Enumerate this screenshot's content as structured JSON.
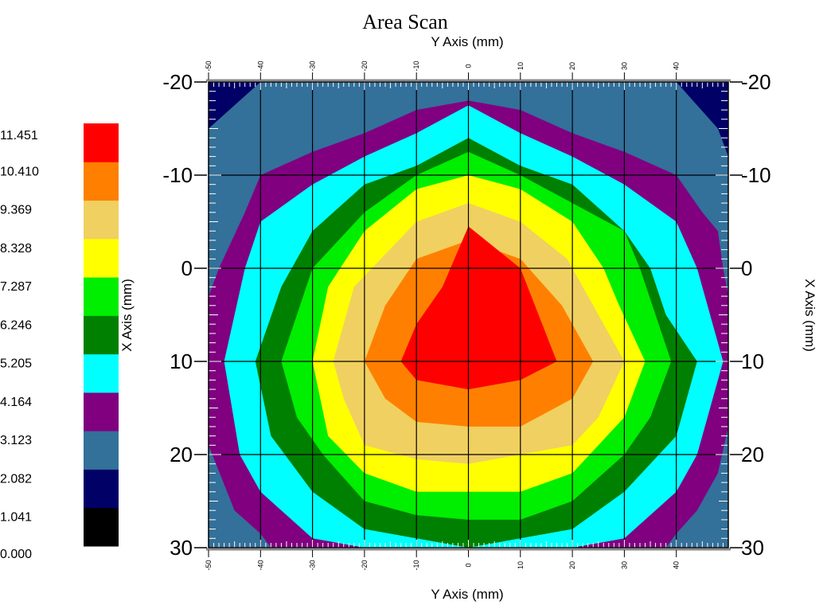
{
  "chart_data": {
    "type": "heatmap",
    "subtype": "filled-contour",
    "title": "Area Scan",
    "y_axis_title": "Y Axis (mm)",
    "x_axis_title": "X Axis (mm)",
    "horizontal_axis": {
      "range": [
        -50,
        50
      ],
      "ticks": [
        -50,
        -40,
        -30,
        -20,
        -10,
        0,
        10,
        20,
        30,
        40
      ]
    },
    "vertical_axis": {
      "range": [
        -20,
        30
      ],
      "ticks": [
        -20,
        -10,
        0,
        10,
        20,
        30
      ]
    },
    "grid": true,
    "colorbar": {
      "position": "left",
      "levels": [
        "0.000",
        "1.041",
        "2.082",
        "3.123",
        "4.164",
        "5.205",
        "6.246",
        "7.287",
        "8.328",
        "9.369",
        "10.410",
        "11.451"
      ],
      "colors": [
        "#000000",
        "#000066",
        "#33709a",
        "#800080",
        "#00ffff",
        "#008000",
        "#00ee00",
        "#ffff00",
        "#f0d060",
        "#ff8000",
        "#ff0000"
      ]
    },
    "peak": {
      "y_mm": 0,
      "x_mm": 10,
      "value_range": "10.410–11.451"
    },
    "contour_bands": [
      {
        "min": 10.41,
        "color": "#ff0000",
        "polygon": [
          [
            -13,
            10
          ],
          [
            -10,
            6
          ],
          [
            -5,
            2
          ],
          [
            0,
            -4.5
          ],
          [
            10,
            0
          ],
          [
            17,
            10
          ],
          [
            10,
            12
          ],
          [
            0,
            13
          ],
          [
            -10,
            12
          ]
        ]
      },
      {
        "min": 9.369,
        "color": "#ff8000",
        "polygon": [
          [
            -20,
            10
          ],
          [
            -16,
            4
          ],
          [
            -10,
            -1
          ],
          [
            0,
            -3
          ],
          [
            10,
            -1
          ],
          [
            18,
            4
          ],
          [
            24,
            10
          ],
          [
            20,
            14
          ],
          [
            10,
            17
          ],
          [
            0,
            17
          ],
          [
            -10,
            16.5
          ],
          [
            -16,
            14
          ]
        ]
      },
      {
        "min": 8.328,
        "color": "#f0d060",
        "polygon": [
          [
            -26,
            10
          ],
          [
            -22,
            2
          ],
          [
            -10,
            -5
          ],
          [
            0,
            -7
          ],
          [
            10,
            -5
          ],
          [
            19,
            -1
          ],
          [
            25,
            5
          ],
          [
            30,
            10
          ],
          [
            25,
            16
          ],
          [
            20,
            19
          ],
          [
            10,
            20
          ],
          [
            0,
            21
          ],
          [
            -10,
            20.5
          ],
          [
            -20,
            19
          ],
          [
            -24,
            14
          ]
        ]
      },
      {
        "min": 7.287,
        "color": "#ffff00",
        "polygon": [
          [
            -30,
            10
          ],
          [
            -27,
            2
          ],
          [
            -20,
            -4
          ],
          [
            -10,
            -8.5
          ],
          [
            0,
            -10
          ],
          [
            10,
            -8.5
          ],
          [
            20,
            -5
          ],
          [
            26,
            0
          ],
          [
            29,
            4
          ],
          [
            34,
            10
          ],
          [
            30,
            16
          ],
          [
            20,
            22
          ],
          [
            10,
            24
          ],
          [
            0,
            24
          ],
          [
            -10,
            24
          ],
          [
            -20,
            22
          ],
          [
            -27,
            18
          ]
        ]
      },
      {
        "min": 6.246,
        "color": "#00ee00",
        "polygon": [
          [
            -36,
            10
          ],
          [
            -30,
            0
          ],
          [
            -20,
            -6
          ],
          [
            -10,
            -10
          ],
          [
            0,
            -12.5
          ],
          [
            10,
            -10
          ],
          [
            20,
            -7
          ],
          [
            30,
            -4
          ],
          [
            33,
            0
          ],
          [
            39,
            10
          ],
          [
            35,
            16
          ],
          [
            30,
            20
          ],
          [
            20,
            25
          ],
          [
            10,
            27
          ],
          [
            0,
            27
          ],
          [
            -10,
            26.5
          ],
          [
            -20,
            25
          ],
          [
            -28,
            20
          ],
          [
            -33,
            16
          ]
        ]
      },
      {
        "min": 5.205,
        "color": "#008000",
        "polygon": [
          [
            -41,
            10
          ],
          [
            -36,
            2
          ],
          [
            -34,
            0
          ],
          [
            -30,
            -4
          ],
          [
            -20,
            -9
          ],
          [
            -10,
            -11
          ],
          [
            0,
            -14
          ],
          [
            10,
            -11
          ],
          [
            20,
            -9
          ],
          [
            30,
            -4
          ],
          [
            35,
            0
          ],
          [
            38,
            5
          ],
          [
            44,
            10
          ],
          [
            40,
            18
          ],
          [
            30,
            24
          ],
          [
            20,
            28
          ],
          [
            10,
            29
          ],
          [
            0,
            30
          ],
          [
            -10,
            29
          ],
          [
            -20,
            28
          ],
          [
            -30,
            24
          ],
          [
            -38,
            18
          ]
        ]
      },
      {
        "min": 4.164,
        "color": "#00ffff",
        "polygon": [
          [
            -47,
            10
          ],
          [
            -43,
            0
          ],
          [
            -40,
            -5
          ],
          [
            -30,
            -9
          ],
          [
            -20,
            -12
          ],
          [
            -10,
            -14.5
          ],
          [
            0,
            -17.5
          ],
          [
            10,
            -14.5
          ],
          [
            20,
            -12
          ],
          [
            30,
            -9
          ],
          [
            40,
            -5
          ],
          [
            44,
            0
          ],
          [
            49,
            10
          ],
          [
            44,
            20
          ],
          [
            40,
            24
          ],
          [
            30,
            29
          ],
          [
            20,
            30
          ],
          [
            -20,
            30
          ],
          [
            -30,
            29
          ],
          [
            -40,
            24
          ],
          [
            -44,
            20
          ]
        ]
      },
      {
        "min": 3.123,
        "color": "#800080",
        "polygon": [
          [
            -50,
            3
          ],
          [
            -48,
            0
          ],
          [
            -43,
            -6
          ],
          [
            -40,
            -10
          ],
          [
            -30,
            -12.5
          ],
          [
            -20,
            -14.5
          ],
          [
            -10,
            -17
          ],
          [
            0,
            -18
          ],
          [
            10,
            -17
          ],
          [
            20,
            -14.5
          ],
          [
            30,
            -12.5
          ],
          [
            40,
            -10
          ],
          [
            45,
            -6
          ],
          [
            48,
            -4
          ],
          [
            49,
            0
          ],
          [
            50,
            3
          ],
          [
            50,
            17
          ],
          [
            48,
            22
          ],
          [
            44,
            26
          ],
          [
            40,
            28.5
          ],
          [
            38,
            30
          ],
          [
            -38,
            30
          ],
          [
            -40,
            28.5
          ],
          [
            -45,
            26
          ],
          [
            -50,
            19
          ]
        ]
      },
      {
        "min": 2.082,
        "color": "#33709a",
        "polygon": [
          [
            -50,
            -15
          ],
          [
            -40,
            -20
          ],
          [
            40,
            -20
          ],
          [
            48,
            -15
          ],
          [
            50,
            -12
          ],
          [
            50,
            30
          ],
          [
            -50,
            30
          ]
        ]
      },
      {
        "min": 1.041,
        "color": "#000066",
        "polygon": [
          [
            -50,
            -20
          ],
          [
            50,
            -20
          ],
          [
            50,
            30
          ],
          [
            -50,
            30
          ]
        ]
      },
      {
        "min": 0.0,
        "color": "#000000",
        "polygon": [
          [
            -50,
            -20
          ],
          [
            -47,
            -20
          ],
          [
            -47,
            -17
          ],
          [
            -50,
            -15
          ]
        ]
      }
    ]
  }
}
